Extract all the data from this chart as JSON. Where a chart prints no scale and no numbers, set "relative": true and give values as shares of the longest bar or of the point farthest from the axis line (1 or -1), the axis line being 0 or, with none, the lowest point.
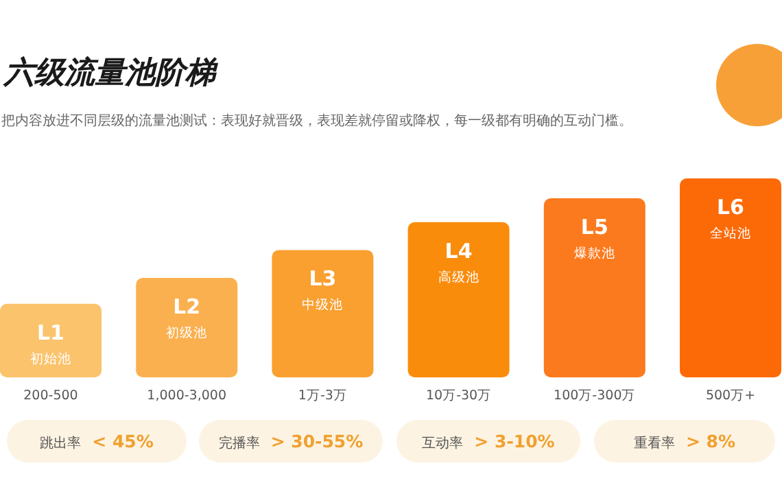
{
  "chart_data": {
    "type": "bar",
    "title": "六级流量池阶梯",
    "subtitle": "把内容放进不同层级的流量池测试：表现好就晋级，表现差就停留或降权，每一级都有明确的互动门槛。",
    "categories": [
      "L1",
      "L2",
      "L3",
      "L4",
      "L5",
      "L6"
    ],
    "values": [
      0.37,
      0.5,
      0.64,
      0.78,
      0.9,
      1
    ],
    "relative": true,
    "colors": [
      "#fbc36c",
      "#fbb050",
      "#f9a030",
      "#fa8c0c",
      "#fb7a1e",
      "#fc6a08"
    ],
    "annotations": [
      "初始池",
      "初级池",
      "中级池",
      "高级池",
      "爆款池",
      "全站池",
      "200-500",
      "1,000-3,000",
      "1万-3万",
      "10万-30万",
      "100万-300万",
      "500万+",
      "跳出率",
      "< 45%",
      "完播率",
      "> 30-55%",
      "互动率",
      "> 3-10%",
      "重看率",
      "> 8%"
    ]
  }
}
